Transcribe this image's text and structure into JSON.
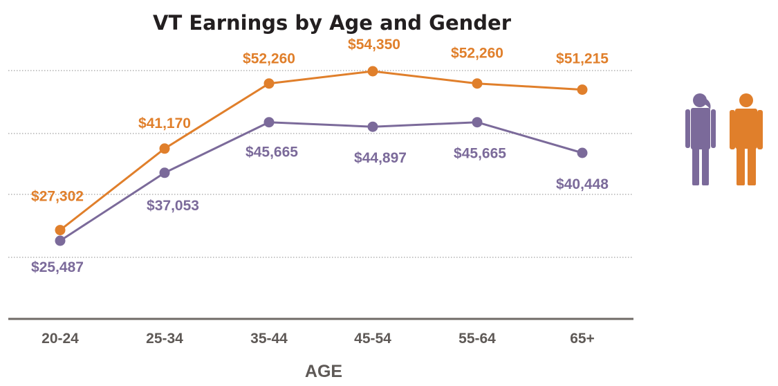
{
  "chart_data": {
    "type": "line",
    "title": "VT Earnings by Age and Gender",
    "xlabel": "AGE",
    "ylabel": "",
    "categories": [
      "20-24",
      "25-34",
      "35-44",
      "45-54",
      "55-64",
      "65+"
    ],
    "ylim": [
      15000,
      60000
    ],
    "grid": true,
    "legend": "right (icons)",
    "series": [
      {
        "key": "orange",
        "color": "#e07f2b",
        "values": [
          27302,
          41170,
          52260,
          54350,
          52260,
          51215
        ],
        "labels": [
          "$27,302",
          "$41,170",
          "$52,260",
          "$54,350",
          "$52,260",
          "$51,215"
        ]
      },
      {
        "key": "purple",
        "color": "#7b6a9a",
        "values": [
          25487,
          37053,
          45665,
          44897,
          45665,
          40448
        ],
        "labels": [
          "$25,487",
          "$37,053",
          "$45,665",
          "$44,897",
          "$45,665",
          "$40,448"
        ]
      }
    ],
    "legend_icons": [
      {
        "icon": "woman-icon",
        "color": "#7b6a9a"
      },
      {
        "icon": "man-icon",
        "color": "#e07f2b"
      }
    ]
  }
}
